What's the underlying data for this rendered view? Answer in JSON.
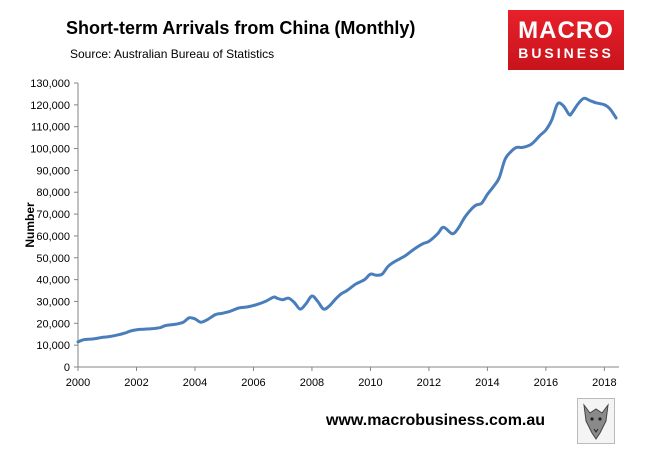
{
  "header": {
    "title": "Short-term Arrivals from China (Monthly)",
    "source": "Source: Australian Bureau of Statistics"
  },
  "logo": {
    "line1": "MACRO",
    "line2": "BUSINESS"
  },
  "footer": {
    "url": "www.macrobusiness.com.au"
  },
  "colors": {
    "line": "#4a7ebb",
    "logo": "#e31e24"
  },
  "chart_data": {
    "type": "line",
    "title": "Short-term Arrivals from China (Monthly)",
    "subtitle": "Source: Australian Bureau of Statistics",
    "xlabel": "",
    "ylabel": "Number",
    "xlim": [
      2000,
      2018.5
    ],
    "ylim": [
      0,
      130000
    ],
    "x_ticks": [
      "2000",
      "2002",
      "2004",
      "2006",
      "2008",
      "2010",
      "2012",
      "2014",
      "2016",
      "2018"
    ],
    "y_ticks": [
      "0",
      "10,000",
      "20,000",
      "30,000",
      "40,000",
      "50,000",
      "60,000",
      "70,000",
      "80,000",
      "90,000",
      "100,000",
      "110,000",
      "120,000",
      "130,000"
    ],
    "grid": false,
    "legend": "none",
    "series": [
      {
        "x": [
          2000.0,
          2000.2,
          2000.5,
          2000.8,
          2001.0,
          2001.3,
          2001.6,
          2001.8,
          2002.1,
          2002.5,
          2002.8,
          2003.0,
          2003.3,
          2003.6,
          2003.8,
          2004.0,
          2004.2,
          2004.4,
          2004.7,
          2004.9,
          2005.2,
          2005.5,
          2005.8,
          2006.1,
          2006.4,
          2006.7,
          2006.8,
          2007.0,
          2007.2,
          2007.4,
          2007.6,
          2007.8,
          2008.0,
          2008.2,
          2008.4,
          2008.6,
          2008.8,
          2009.0,
          2009.2,
          2009.5,
          2009.8,
          2010.0,
          2010.2,
          2010.4,
          2010.6,
          2010.8,
          2011.0,
          2011.2,
          2011.5,
          2011.8,
          2012.0,
          2012.3,
          2012.5,
          2012.8,
          2013.0,
          2013.2,
          2013.4,
          2013.6,
          2013.8,
          2014.0,
          2014.2,
          2014.4,
          2014.6,
          2014.8,
          2015.0,
          2015.2,
          2015.5,
          2015.8,
          2016.0,
          2016.2,
          2016.4,
          2016.6,
          2016.8,
          2016.9,
          2017.1,
          2017.3,
          2017.5,
          2017.7,
          2018.0,
          2018.2,
          2018.4
        ],
        "y": [
          11500,
          12500,
          12800,
          13500,
          13800,
          14500,
          15500,
          16500,
          17200,
          17500,
          18000,
          19000,
          19500,
          20500,
          22500,
          22000,
          20500,
          21500,
          24000,
          24500,
          25500,
          27000,
          27500,
          28500,
          30000,
          32000,
          31500,
          30800,
          31500,
          29500,
          26500,
          29000,
          32500,
          30000,
          26500,
          28000,
          31000,
          33500,
          35000,
          38000,
          40000,
          42500,
          42000,
          42500,
          46000,
          48000,
          49500,
          51000,
          54000,
          56500,
          57500,
          61000,
          64000,
          61000,
          63500,
          68000,
          71500,
          74000,
          75000,
          79000,
          82500,
          86500,
          95000,
          98500,
          100500,
          100500,
          102000,
          106000,
          108500,
          113000,
          120500,
          119500,
          115500,
          116500,
          120500,
          123000,
          122000,
          121000,
          120000,
          118000,
          114000
        ]
      }
    ]
  }
}
